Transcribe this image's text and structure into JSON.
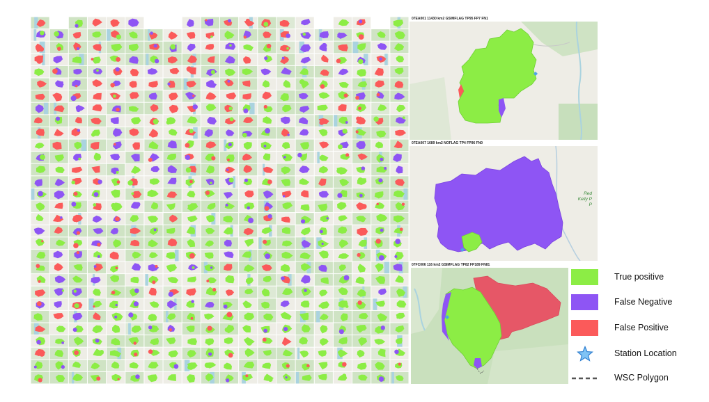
{
  "panels": [
    {
      "title": "07EA001 11430 km2 GSIMFLAG TP95 FP7 FN1"
    },
    {
      "title": "07EA007 1689 km2 NOFLAG TP4 FP96 FN0",
      "map_labels": [
        "Red",
        "Kelly P",
        "P"
      ]
    },
    {
      "title": "07FC006 116 km2 GSIMFLAG TP82 FP189 FN81"
    }
  ],
  "legend": [
    {
      "label": "True positive",
      "color": "#8ced45",
      "icon": "swatch"
    },
    {
      "label": "False Negative",
      "color": "#8e55f4",
      "icon": "swatch"
    },
    {
      "label": "False Positive",
      "color": "#fb5a5a",
      "icon": "swatch"
    },
    {
      "label": "Station Location",
      "color": "#4da3e8",
      "icon": "star-icon"
    },
    {
      "label": "WSC Polygon",
      "color": "#555555",
      "icon": "dashed-line"
    }
  ],
  "colors": {
    "true_positive": "#8ced45",
    "false_negative": "#8e55f4",
    "false_positive": "#fb5a5a",
    "map_bg": "#eeede6",
    "forest": "#cfe3c4",
    "water": "#aad3df"
  }
}
